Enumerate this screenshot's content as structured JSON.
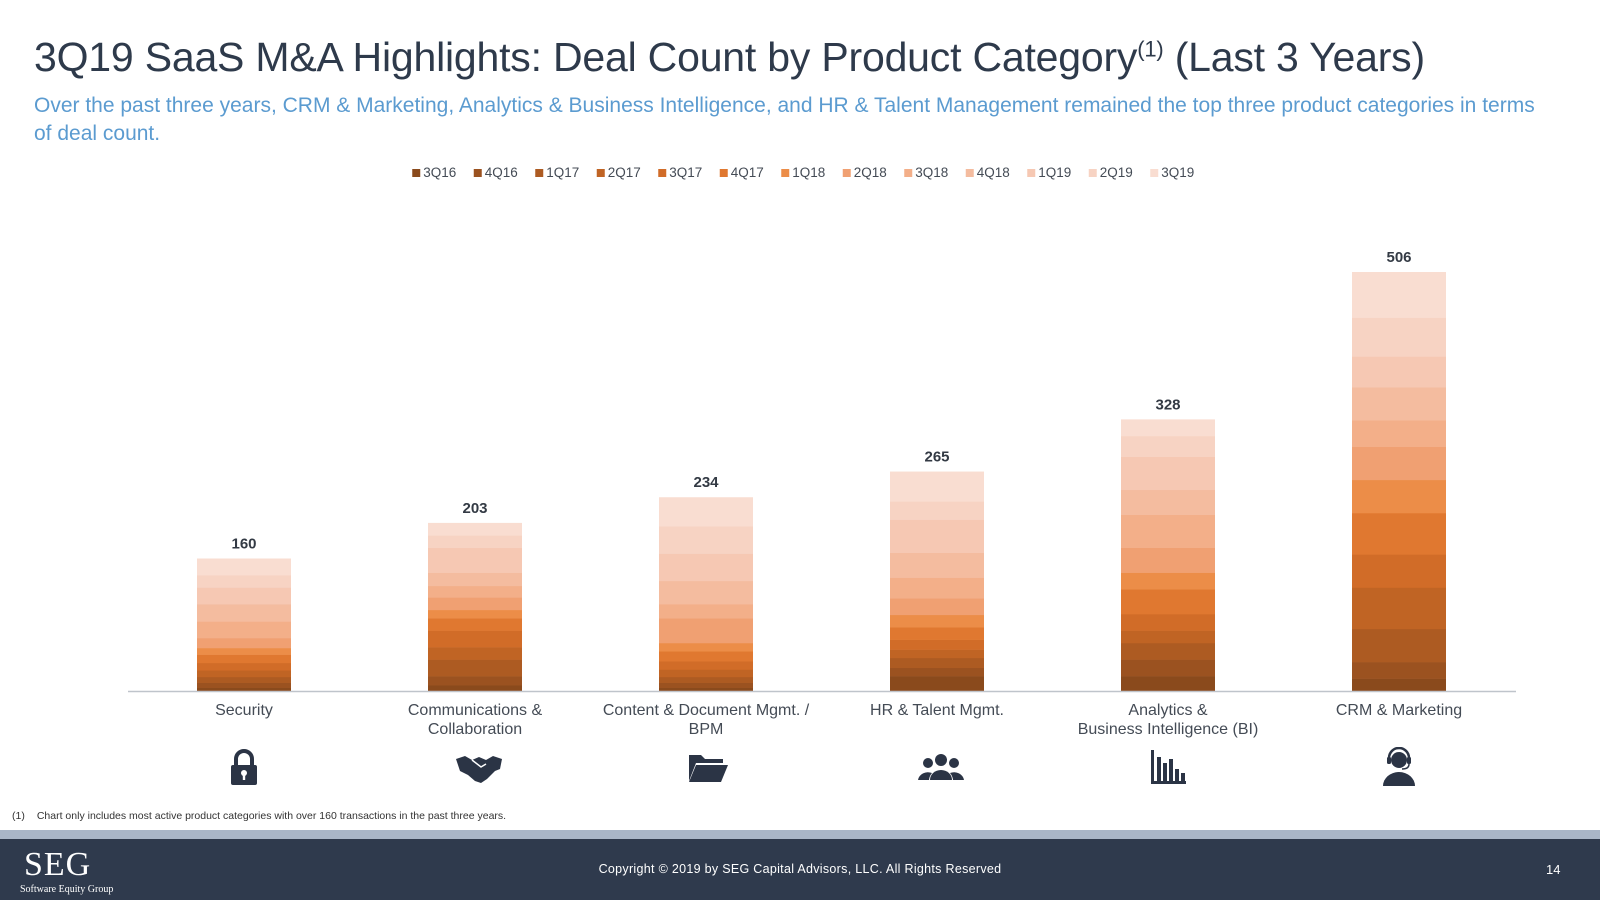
{
  "page": {
    "title_main": "3Q19 SaaS M&A Highlights: Deal Count by Product Category",
    "title_sup": "(1)",
    "title_tail": " (Last 3 Years)",
    "subtitle": "Over the past three years, CRM & Marketing, Analytics & Business Intelligence, and HR & Talent Management remained the top three product categories in terms of deal count."
  },
  "chart_data": {
    "type": "bar",
    "stacked": true,
    "title": "Deal Count by Product Category (Last 3 Years)",
    "xlabel": "",
    "ylabel": "",
    "ylim": [
      0,
      506
    ],
    "legend_position": "top-center",
    "categories": [
      [
        "Security"
      ],
      [
        "Communications &",
        "Collaboration"
      ],
      [
        "Content & Document Mgmt. /",
        "BPM"
      ],
      [
        "HR & Talent Mgmt."
      ],
      [
        "Analytics &",
        "Business Intelligence (BI)"
      ],
      [
        "CRM & Marketing"
      ]
    ],
    "totals": [
      160,
      203,
      234,
      265,
      328,
      506
    ],
    "series": [
      {
        "name": "3Q16",
        "color": "#8a4a1c",
        "values": [
          4,
          7,
          4,
          18,
          18,
          15
        ]
      },
      {
        "name": "4Q16",
        "color": "#9b5220",
        "values": [
          6,
          11,
          6,
          10,
          20,
          20
        ]
      },
      {
        "name": "1Q17",
        "color": "#ad5b22",
        "values": [
          7,
          20,
          7,
          12,
          20,
          40
        ]
      },
      {
        "name": "2Q17",
        "color": "#c06424",
        "values": [
          8,
          15,
          9,
          10,
          15,
          50
        ]
      },
      {
        "name": "3Q17",
        "color": "#d16c28",
        "values": [
          9,
          20,
          10,
          12,
          20,
          40
        ]
      },
      {
        "name": "4Q17",
        "color": "#e07830",
        "values": [
          10,
          15,
          12,
          15,
          30,
          50
        ]
      },
      {
        "name": "1Q18",
        "color": "#ec8d48",
        "values": [
          8,
          10,
          10,
          15,
          20,
          40
        ]
      },
      {
        "name": "2Q18",
        "color": "#f0a072",
        "values": [
          12,
          15,
          30,
          20,
          30,
          40
        ]
      },
      {
        "name": "3Q18",
        "color": "#f3af89",
        "values": [
          20,
          14,
          17,
          25,
          40,
          32
        ]
      },
      {
        "name": "4Q18",
        "color": "#f4bc9f",
        "values": [
          21,
          16,
          28,
          30,
          30,
          40
        ]
      },
      {
        "name": "1Q19",
        "color": "#f6c8b3",
        "values": [
          20,
          30,
          33,
          40,
          40,
          37
        ]
      },
      {
        "name": "2Q19",
        "color": "#f7d3c3",
        "values": [
          15,
          15,
          33,
          22,
          25,
          47
        ]
      },
      {
        "name": "3Q19",
        "color": "#f9ddd1",
        "values": [
          20,
          15,
          35,
          36,
          20,
          55
        ]
      }
    ]
  },
  "icons": [
    "lock-icon",
    "handshake-icon",
    "folder-icon",
    "users-icon",
    "bar-chart-icon",
    "support-agent-icon"
  ],
  "footnote": {
    "number": "(1)",
    "text": "Chart only includes most active product categories with over 160 transactions in the past three years."
  },
  "footer": {
    "logo_main": "SEG",
    "logo_sub": "Software Equity Group",
    "copyright": "Copyright © 2019 by SEG Capital Advisors, LLC. All Rights Reserved",
    "page_number": "14"
  },
  "colors": {
    "title": "#2e3a4b",
    "subtitle": "#5b9bd0",
    "footer_bg": "#2f3a4d",
    "strip": "#a9b6c8",
    "icon": "#2b3445"
  }
}
